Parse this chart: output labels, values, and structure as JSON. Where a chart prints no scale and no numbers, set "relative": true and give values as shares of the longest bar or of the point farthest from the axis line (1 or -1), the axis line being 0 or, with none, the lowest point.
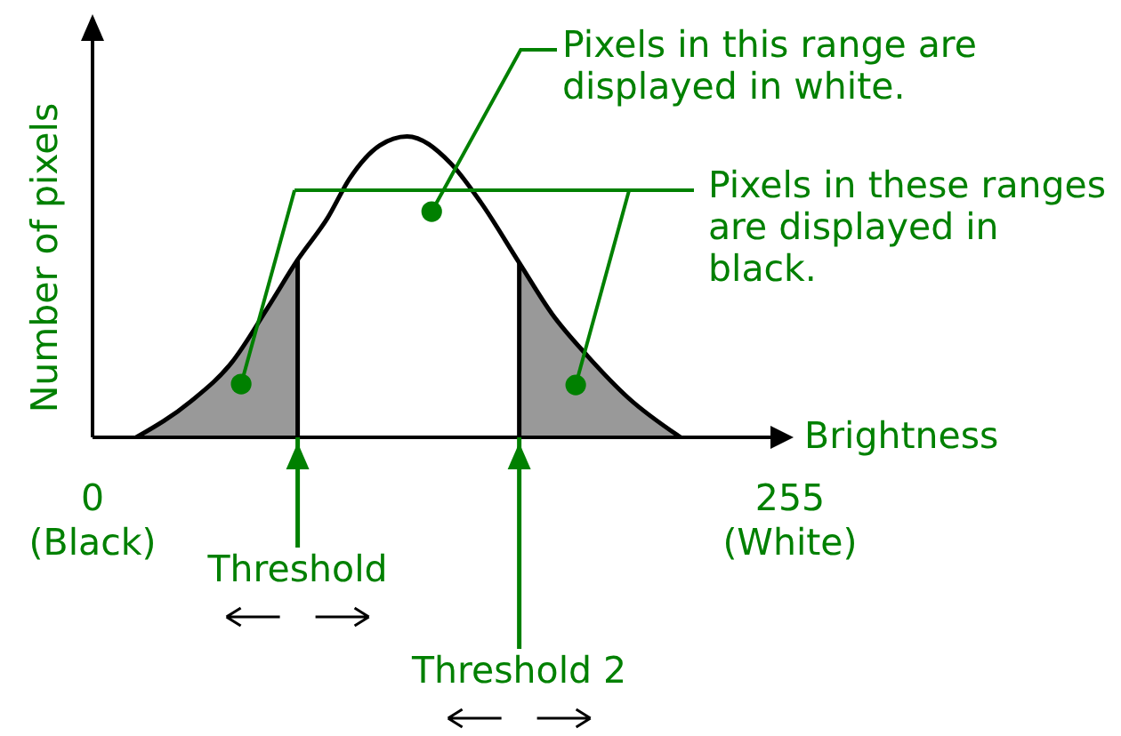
{
  "chart_data": {
    "type": "line",
    "xlabel": "Brightness",
    "ylabel": "Number of pixels",
    "relative": true,
    "xlim": [
      0,
      255
    ],
    "xticks": [
      {
        "value": 0,
        "label": "0\n(Black)"
      },
      {
        "value": 255,
        "label": "255\n(White)"
      }
    ],
    "series": [
      {
        "color": "#000000",
        "x": [
          16,
          36,
          51,
          64,
          75,
          86,
          94,
          105,
          115,
          131,
          142,
          156,
          168,
          181,
          196,
          215
        ],
        "values": [
          0,
          0.12,
          0.25,
          0.43,
          0.59,
          0.73,
          0.86,
          0.97,
          1,
          0.91,
          0.78,
          0.58,
          0.41,
          0.27,
          0.13,
          0
        ]
      },
      {
        "type": "area",
        "color": "#999999",
        "x": [
          16,
          36,
          51,
          64,
          75
        ],
        "values": [
          0,
          0.12,
          0.25,
          0.43,
          0.59
        ]
      },
      {
        "type": "area",
        "color": "#999999",
        "x": [
          156,
          168,
          181,
          196,
          215
        ],
        "values": [
          0.58,
          0.41,
          0.27,
          0.13,
          0
        ]
      }
    ],
    "ref_lines": [
      {
        "axis": "x",
        "value": 75,
        "label": "Threshold"
      },
      {
        "axis": "x",
        "value": 156,
        "label": "Threshold 2"
      }
    ],
    "annotations": [
      {
        "text": "Pixels in this range are displayed in white.",
        "x": 124,
        "y": 0.75
      },
      "Pixels in these ranges are displayed in black."
    ]
  }
}
